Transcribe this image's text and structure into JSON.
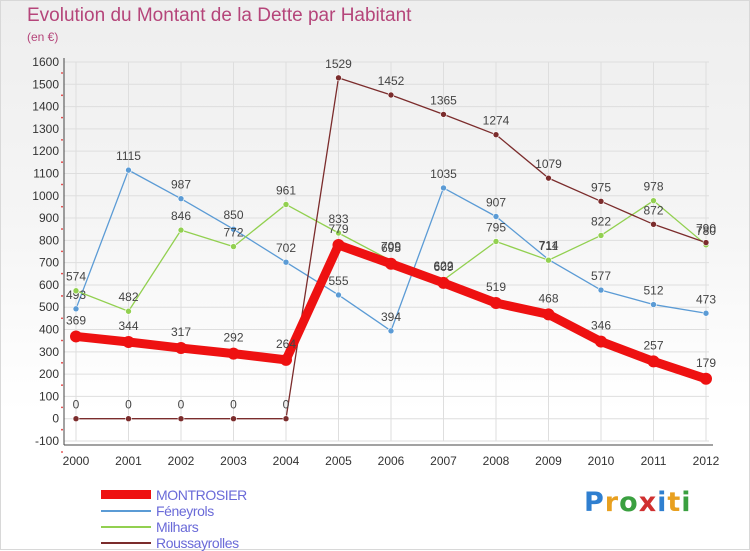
{
  "title": "Evolution du Montant de la Dette par Habitant",
  "unit_label": "(en €)",
  "logo": {
    "text": "Proxiti",
    "letter_colors": [
      "#2f7fd0",
      "#e8a020",
      "#3aa040",
      "#d03030",
      "#2f7fd0",
      "#e8a020",
      "#3aa040"
    ]
  },
  "chart_data": {
    "type": "line",
    "title": "Evolution du Montant de la Dette par Habitant",
    "ylabel": "(en €)",
    "xlabel": "",
    "categories": [
      "2000",
      "2001",
      "2002",
      "2003",
      "2004",
      "2005",
      "2006",
      "2007",
      "2008",
      "2009",
      "2010",
      "2011",
      "2012"
    ],
    "ylim": [
      -100,
      1600
    ],
    "yticks": [
      -100,
      0,
      100,
      200,
      300,
      400,
      500,
      600,
      700,
      800,
      900,
      1000,
      1100,
      1200,
      1300,
      1400,
      1500,
      1600
    ],
    "grid": true,
    "legend_position": "bottom-left",
    "series": [
      {
        "name": "MONTROSIER",
        "color": "#ee1111",
        "emphasis": true,
        "values": [
          369,
          344,
          317,
          292,
          264,
          779,
          695,
          609,
          519,
          468,
          346,
          257,
          179
        ]
      },
      {
        "name": "Féneyrols",
        "color": "#5b9bd5",
        "emphasis": false,
        "values": [
          493,
          1115,
          987,
          850,
          702,
          555,
          394,
          1035,
          907,
          714,
          577,
          512,
          473
        ]
      },
      {
        "name": "Milhars",
        "color": "#92d050",
        "emphasis": false,
        "values": [
          574,
          482,
          846,
          772,
          961,
          833,
          709,
          622,
          795,
          711,
          822,
          978,
          780
        ]
      },
      {
        "name": "Roussayrolles",
        "color": "#7b2c2c",
        "emphasis": false,
        "values": [
          0,
          0,
          0,
          0,
          0,
          1529,
          1452,
          1365,
          1274,
          1079,
          975,
          872,
          790
        ]
      }
    ]
  }
}
